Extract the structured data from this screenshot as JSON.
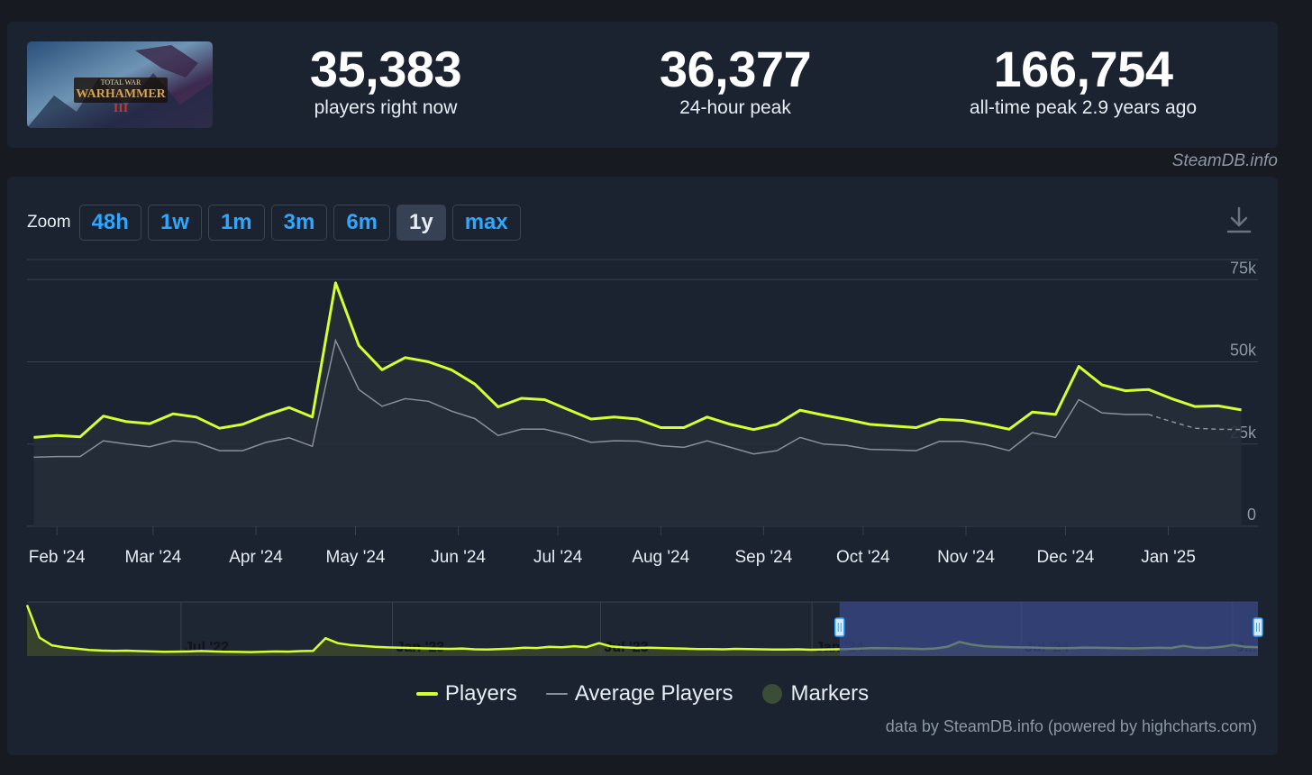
{
  "stats": [
    {
      "value": "35,383",
      "label": "players right now"
    },
    {
      "value": "36,377",
      "label": "24-hour peak"
    },
    {
      "value": "166,754",
      "label": "all-time peak 2.9 years ago"
    }
  ],
  "banner": {
    "line1": "TOTAL WAR",
    "line2": "WARHAMMER",
    "numeral": "III"
  },
  "credit_top": "SteamDB.info",
  "zoom": {
    "label": "Zoom",
    "buttons": [
      "48h",
      "1w",
      "1m",
      "3m",
      "6m",
      "1y",
      "max"
    ],
    "active": "1y"
  },
  "legend": [
    {
      "label": "Players",
      "color": "#d4ff33"
    },
    {
      "label": "Average Players",
      "color": "#8a8f98"
    },
    {
      "label": "Markers",
      "color": "#3a4d36"
    }
  ],
  "credit_bottom": "data by SteamDB.info (powered by highcharts.com)",
  "colors": {
    "players": "#d4ff33",
    "average": "#8a8f98",
    "grid": "#39424f",
    "selection": "#3a4a8a"
  },
  "chart_data": {
    "type": "line",
    "title": "",
    "xlabel": "",
    "ylabel": "",
    "ylim": [
      0,
      80000
    ],
    "y_ticks": [
      0,
      25000,
      50000,
      75000
    ],
    "y_tick_labels": [
      "0",
      "25k",
      "50k",
      "75k"
    ],
    "x_ticks": [
      "2024-02-01",
      "2024-03-01",
      "2024-04-01",
      "2024-05-01",
      "2024-06-01",
      "2024-07-01",
      "2024-08-01",
      "2024-09-01",
      "2024-10-01",
      "2024-11-01",
      "2024-12-01",
      "2025-01-01"
    ],
    "x_tick_labels": [
      "Feb '24",
      "Mar '24",
      "Apr '24",
      "May '24",
      "Jun '24",
      "Jul '24",
      "Aug '24",
      "Sep '24",
      "Oct '24",
      "Nov '24",
      "Dec '24",
      "Jan '25"
    ],
    "legend_position": "bottom",
    "series": [
      {
        "name": "Players",
        "x": [
          "2024-01-25",
          "2024-02-01",
          "2024-02-08",
          "2024-02-15",
          "2024-02-22",
          "2024-02-29",
          "2024-03-07",
          "2024-03-14",
          "2024-03-21",
          "2024-03-28",
          "2024-04-04",
          "2024-04-11",
          "2024-04-18",
          "2024-04-25",
          "2024-05-02",
          "2024-05-09",
          "2024-05-16",
          "2024-05-23",
          "2024-05-30",
          "2024-06-06",
          "2024-06-13",
          "2024-06-20",
          "2024-06-27",
          "2024-07-04",
          "2024-07-11",
          "2024-07-18",
          "2024-07-25",
          "2024-08-01",
          "2024-08-08",
          "2024-08-15",
          "2024-08-22",
          "2024-08-29",
          "2024-09-05",
          "2024-09-12",
          "2024-09-19",
          "2024-09-26",
          "2024-10-03",
          "2024-10-10",
          "2024-10-17",
          "2024-10-24",
          "2024-10-31",
          "2024-11-07",
          "2024-11-14",
          "2024-11-21",
          "2024-11-28",
          "2024-12-05",
          "2024-12-12",
          "2024-12-19",
          "2024-12-26",
          "2025-01-02",
          "2025-01-09",
          "2025-01-16",
          "2025-01-23"
        ],
        "values": [
          27000,
          27600,
          27200,
          33500,
          31800,
          31200,
          34200,
          33200,
          29800,
          31000,
          33800,
          36100,
          33200,
          74000,
          55000,
          47600,
          51300,
          50000,
          47500,
          43200,
          36300,
          38900,
          38500,
          35500,
          32600,
          33200,
          32600,
          30000,
          30000,
          33200,
          31000,
          29400,
          31000,
          35300,
          33800,
          32500,
          31000,
          30500,
          30000,
          32500,
          32200,
          31000,
          29500,
          34700,
          34000,
          48600,
          43000,
          41200,
          41600,
          38800,
          36400,
          36600,
          35383
        ]
      },
      {
        "name": "Average Players",
        "x": [
          "2024-01-25",
          "2024-02-01",
          "2024-02-08",
          "2024-02-15",
          "2024-02-22",
          "2024-02-29",
          "2024-03-07",
          "2024-03-14",
          "2024-03-21",
          "2024-03-28",
          "2024-04-04",
          "2024-04-11",
          "2024-04-18",
          "2024-04-25",
          "2024-05-02",
          "2024-05-09",
          "2024-05-16",
          "2024-05-23",
          "2024-05-30",
          "2024-06-06",
          "2024-06-13",
          "2024-06-20",
          "2024-06-27",
          "2024-07-04",
          "2024-07-11",
          "2024-07-18",
          "2024-07-25",
          "2024-08-01",
          "2024-08-08",
          "2024-08-15",
          "2024-08-22",
          "2024-08-29",
          "2024-09-05",
          "2024-09-12",
          "2024-09-19",
          "2024-09-26",
          "2024-10-03",
          "2024-10-10",
          "2024-10-17",
          "2024-10-24",
          "2024-10-31",
          "2024-11-07",
          "2024-11-14",
          "2024-11-21",
          "2024-11-28",
          "2024-12-05",
          "2024-12-12",
          "2024-12-19",
          "2024-12-26",
          "2025-01-02",
          "2025-01-09",
          "2025-01-16",
          "2025-01-23"
        ],
        "values": [
          21000,
          21200,
          21200,
          26000,
          25000,
          24200,
          26000,
          25500,
          23000,
          23000,
          25500,
          26900,
          24300,
          56500,
          41600,
          36500,
          38800,
          38000,
          35000,
          32700,
          27600,
          29500,
          29500,
          27800,
          25500,
          26000,
          25900,
          24500,
          24000,
          26000,
          24000,
          22000,
          23000,
          27000,
          25000,
          24600,
          23400,
          23200,
          23000,
          25800,
          25800,
          24800,
          23000,
          28500,
          27000,
          38500,
          34500,
          34000,
          34000,
          31800,
          29800,
          29500,
          29400
        ]
      }
    ],
    "navigator": {
      "x_tick_labels": [
        "Jul '22",
        "Jan '23",
        "Jul '23",
        "Jan '24",
        "Jul '24",
        "J..."
      ],
      "x_ticks": [
        "2022-07-01",
        "2023-01-01",
        "2023-07-01",
        "2024-01-01",
        "2024-07-01",
        "2025-01-01"
      ],
      "range": [
        "2022-02-17",
        "2025-01-23"
      ],
      "selected": [
        "2024-01-25",
        "2025-01-23"
      ],
      "values": [
        166000,
        60000,
        35000,
        28000,
        24000,
        20000,
        18000,
        17000,
        17500,
        16000,
        15000,
        14000,
        14500,
        15000,
        16500,
        15000,
        14000,
        13500,
        13000,
        13800,
        15000,
        14500,
        16000,
        17000,
        58000,
        42000,
        36000,
        33000,
        30000,
        28000,
        27000,
        26000,
        25000,
        24000,
        23500,
        24500,
        22000,
        21500,
        22500,
        24000,
        27000,
        26000,
        30000,
        28500,
        32000,
        29000,
        42000,
        31000,
        28000,
        26500,
        27000,
        26000,
        25000,
        24000,
        23000,
        22500,
        22000,
        23500,
        23000,
        22000,
        21500,
        21000,
        22000,
        20500,
        21000,
        22000,
        23000,
        24000,
        26000,
        25500,
        25000,
        24000,
        23000,
        24500,
        30000,
        46000,
        37000,
        32000,
        30000,
        29000,
        28000,
        27500,
        26000,
        25500,
        26000,
        27500,
        27000,
        26500,
        25500,
        25000,
        26000,
        27000,
        26000,
        33000,
        27000,
        26500,
        30000,
        36000,
        30000,
        29000
      ]
    }
  }
}
